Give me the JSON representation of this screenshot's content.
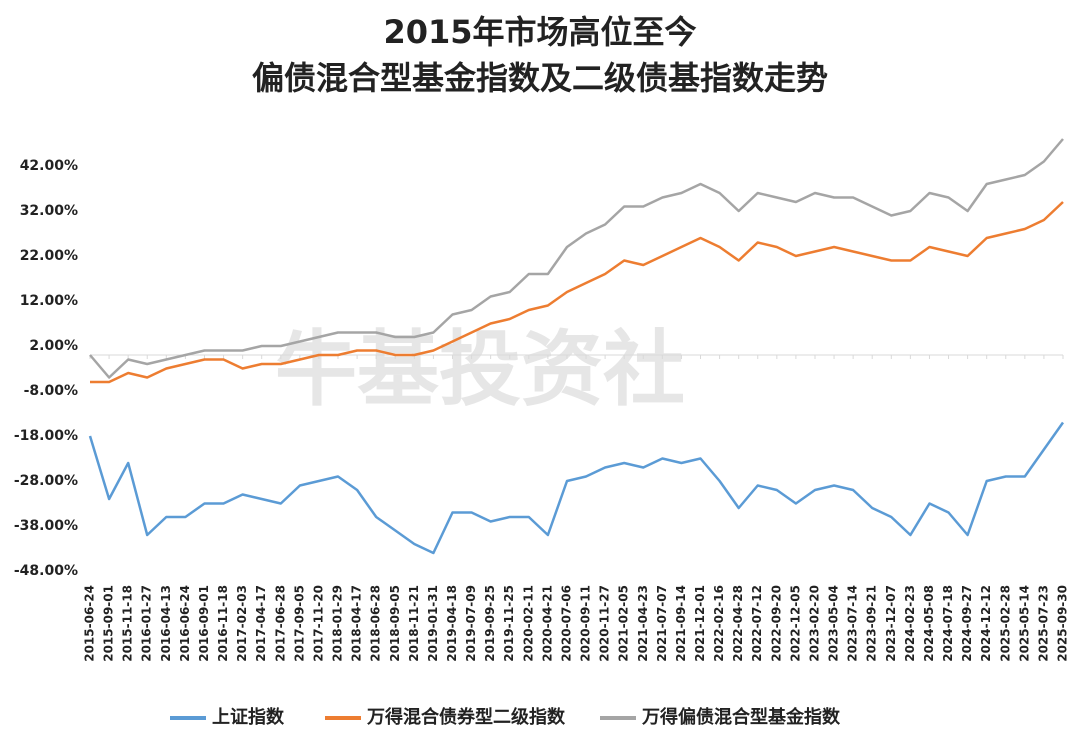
{
  "chart_data": {
    "type": "line",
    "title": "2015年市场高位至今",
    "subtitle": "偏债混合型基金指数及二级债基指数走势",
    "watermark": "牛基投资社",
    "categories": [
      "2015-06-24",
      "2015-09-01",
      "2015-11-18",
      "2016-01-27",
      "2016-04-13",
      "2016-06-24",
      "2016-09-01",
      "2016-11-18",
      "2017-02-03",
      "2017-04-17",
      "2017-06-28",
      "2017-09-05",
      "2017-11-20",
      "2018-01-29",
      "2018-04-17",
      "2018-06-28",
      "2018-09-05",
      "2018-11-21",
      "2019-01-31",
      "2019-04-18",
      "2019-07-09",
      "2019-09-25",
      "2019-11-25",
      "2020-02-11",
      "2020-04-21",
      "2020-07-06",
      "2020-09-11",
      "2020-11-27",
      "2021-02-05",
      "2021-04-23",
      "2021-07-07",
      "2021-09-14",
      "2021-12-01",
      "2022-02-16",
      "2022-04-28",
      "2022-07-12",
      "2022-09-20",
      "2022-12-05",
      "2023-02-20",
      "2023-05-04",
      "2023-07-14",
      "2023-09-21",
      "2023-12-07",
      "2024-02-23",
      "2024-05-08",
      "2024-07-18",
      "2024-09-27",
      "2024-12-12",
      "2025-02-28",
      "2025-05-14",
      "2025-07-23",
      "2025-09-30"
    ],
    "series": [
      {
        "name": "上证指数",
        "color": "#5b9bd5",
        "values": [
          -18,
          -32,
          -24,
          -40,
          -36,
          -36,
          -33,
          -33,
          -31,
          -32,
          -33,
          -29,
          -28,
          -27,
          -30,
          -36,
          -39,
          -42,
          -44,
          -35,
          -35,
          -37,
          -36,
          -36,
          -40,
          -28,
          -27,
          -25,
          -24,
          -25,
          -23,
          -24,
          -23,
          -28,
          -34,
          -29,
          -30,
          -33,
          -30,
          -29,
          -30,
          -34,
          -36,
          -40,
          -33,
          -35,
          -40,
          -28,
          -27,
          -27,
          -21,
          -15
        ]
      },
      {
        "name": "万得混合债券型二级指数",
        "color": "#ed7d31",
        "values": [
          -6,
          -6,
          -4,
          -5,
          -3,
          -2,
          -1,
          -1,
          -3,
          -2,
          -2,
          -1,
          0,
          0,
          1,
          1,
          0,
          0,
          1,
          3,
          5,
          7,
          8,
          10,
          11,
          14,
          16,
          18,
          21,
          20,
          22,
          24,
          26,
          24,
          21,
          25,
          24,
          22,
          23,
          24,
          23,
          22,
          21,
          21,
          24,
          23,
          22,
          26,
          27,
          28,
          30,
          34
        ]
      },
      {
        "name": "万得偏债混合型基金指数",
        "color": "#a5a5a5",
        "values": [
          0,
          -5,
          -1,
          -2,
          -1,
          0,
          1,
          1,
          1,
          2,
          2,
          3,
          4,
          5,
          5,
          5,
          4,
          4,
          5,
          9,
          10,
          13,
          14,
          18,
          18,
          24,
          27,
          29,
          33,
          33,
          35,
          36,
          38,
          36,
          32,
          36,
          35,
          34,
          36,
          35,
          35,
          33,
          31,
          32,
          36,
          35,
          32,
          38,
          39,
          40,
          43,
          48
        ]
      }
    ],
    "ylim": [
      -48,
      50
    ],
    "yticks": [
      {
        "value": -48,
        "label": "-48.00%"
      },
      {
        "value": -38,
        "label": "-38.00%"
      },
      {
        "value": -28,
        "label": "-28.00%"
      },
      {
        "value": -18,
        "label": "-18.00%"
      },
      {
        "value": -8,
        "label": "-8.00%"
      },
      {
        "value": 2,
        "label": "2.00%"
      },
      {
        "value": 12,
        "label": "12.00%"
      },
      {
        "value": 22,
        "label": "22.00%"
      },
      {
        "value": 32,
        "label": "32.00%"
      },
      {
        "value": 42,
        "label": "42.00%"
      }
    ]
  }
}
